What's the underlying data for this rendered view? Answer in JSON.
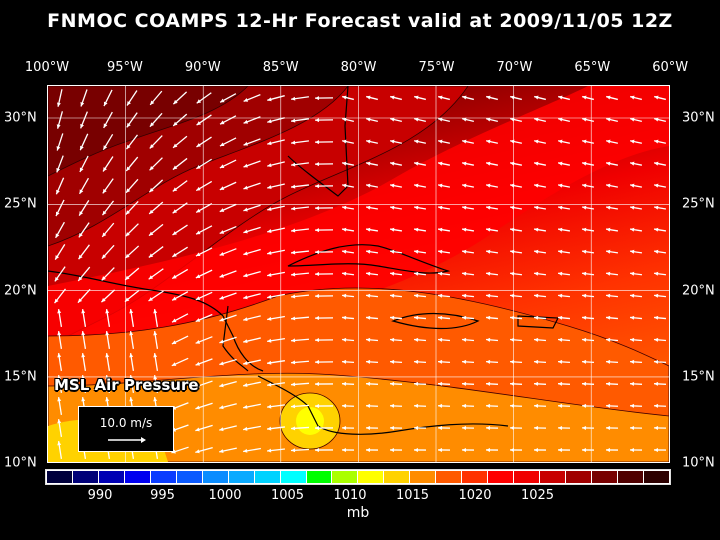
{
  "title": "FNMOC COAMPS 12-Hr Forecast valid at 2009/11/05 12Z",
  "lon_labels": [
    "100°W",
    "95°W",
    "90°W",
    "85°W",
    "80°W",
    "75°W",
    "70°W",
    "65°W",
    "60°W"
  ],
  "lat_labels": [
    "30°N",
    "25°N",
    "20°N",
    "15°N",
    "10°N"
  ],
  "field_label": "MSL Air Pressure",
  "wind_scale": {
    "label": "10.0 m/s",
    "value_ms": 10.0
  },
  "colorbar": {
    "colors": [
      "#00003c",
      "#000078",
      "#0000b4",
      "#0000f0",
      "#0a3cff",
      "#0a5aff",
      "#0a8cff",
      "#0aaaff",
      "#00d2ff",
      "#00ffff",
      "#00ff00",
      "#aaff00",
      "#ffff00",
      "#ffd200",
      "#ff8c00",
      "#ff5a00",
      "#ff3200",
      "#ff0000",
      "#f00000",
      "#c80000",
      "#a00000",
      "#780000",
      "#500000",
      "#2d0000"
    ],
    "labels": [
      "990",
      "995",
      "1000",
      "1005",
      "1010",
      "1015",
      "1020",
      "1025"
    ],
    "unit": "mb"
  }
}
